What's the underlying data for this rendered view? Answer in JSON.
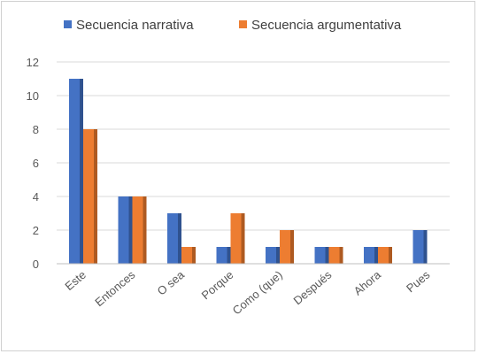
{
  "chart_data": {
    "type": "bar",
    "title": "",
    "xlabel": "",
    "ylabel": "",
    "ylim": [
      0,
      12
    ],
    "yticks": [
      0,
      2,
      4,
      6,
      8,
      10,
      12
    ],
    "grid": true,
    "legend_position": "top",
    "categories": [
      "Este",
      "Entonces",
      "O sea",
      "Porque",
      "Como (que)",
      "Después",
      "Ahora",
      "Pues"
    ],
    "series": [
      {
        "name": "Secuencia narrativa",
        "color": "#4472C4",
        "values": [
          11,
          4,
          3,
          1,
          1,
          1,
          1,
          2
        ]
      },
      {
        "name": "Secuencia argumentativa",
        "color": "#ED7D31",
        "values": [
          8,
          4,
          1,
          3,
          2,
          1,
          1,
          0
        ]
      }
    ]
  }
}
